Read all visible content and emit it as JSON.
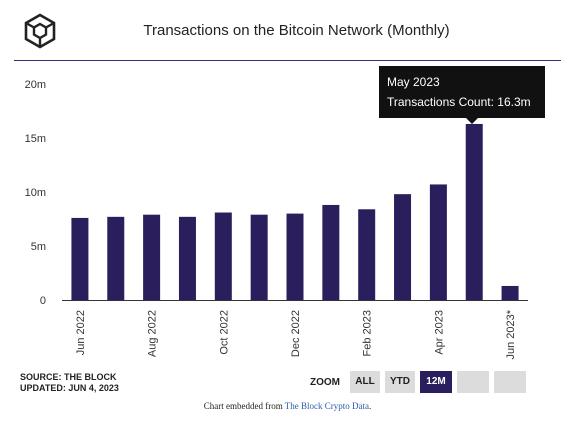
{
  "header": {
    "logo_icon": "the-block-cube-logo-icon",
    "title": "Transactions on the Bitcoin Network (Monthly)"
  },
  "chart_data": {
    "type": "bar",
    "title": "Transactions on the Bitcoin Network (Monthly)",
    "xlabel": "",
    "ylabel": "",
    "categories": [
      "Jun 2022",
      "Jul 2022",
      "Aug 2022",
      "Sep 2022",
      "Oct 2022",
      "Nov 2022",
      "Dec 2022",
      "Jan 2023",
      "Feb 2023",
      "Mar 2023",
      "Apr 2023",
      "May 2023",
      "Jun 2023*"
    ],
    "x_tick_labels": [
      "Jun 2022",
      "",
      "Aug 2022",
      "",
      "Oct 2022",
      "",
      "Dec 2022",
      "",
      "Feb 2023",
      "",
      "Apr 2023",
      "",
      "Jun 2023*"
    ],
    "values": [
      7.6,
      7.7,
      7.9,
      7.7,
      8.1,
      7.9,
      8.0,
      8.8,
      8.4,
      9.8,
      10.7,
      16.3,
      1.3
    ],
    "unit": "m",
    "ylim": [
      0,
      20
    ],
    "y_ticks": [
      0,
      5,
      10,
      15,
      20
    ],
    "y_tick_labels": [
      "0",
      "5m",
      "10m",
      "15m",
      "20m"
    ],
    "grid": false,
    "bar_color": "#2a1f5c",
    "highlight_index": 11
  },
  "tooltip": {
    "month": "May 2023",
    "text": "Transactions Count: 16.3m"
  },
  "source": {
    "line1": "SOURCE: THE BLOCK",
    "line2": "UPDATED: JUN 4, 2023"
  },
  "zoom": {
    "label": "ZOOM",
    "buttons": [
      "ALL",
      "YTD",
      "12M",
      "",
      ""
    ],
    "active": "12M"
  },
  "embed": {
    "prefix": "Chart embedded from ",
    "link": "The Block Crypto Data",
    "suffix": "."
  },
  "colors": {
    "accent": "#2a1f5c",
    "button_inactive": "#dcdcdc",
    "tooltip_bg": "#111111",
    "link": "#2a5db0"
  }
}
